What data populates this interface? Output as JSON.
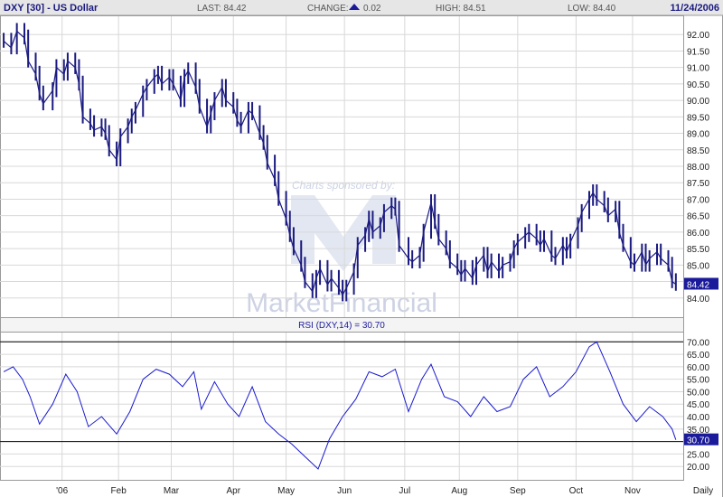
{
  "header": {
    "symbol": "DXY [30] - US Dollar",
    "last": "LAST: 84.42",
    "change_label": "CHANGE:",
    "change_value": "0.02",
    "high": "HIGH: 84.51",
    "low": "LOW: 84.40",
    "date": "11/24/2006"
  },
  "watermark": {
    "sponsor": "Charts sponsored by:",
    "brand": "MarketFinancial"
  },
  "colors": {
    "price": "#1a1a80",
    "rsi": "#1a1ad0",
    "grid": "#d8d8d8",
    "frame": "#9a9a9a",
    "header_bg": "#e6e6e6",
    "label_bg": "#1a1a9a",
    "watermark": "#c5cbe0"
  },
  "chart_data": [
    {
      "type": "ohlc",
      "title": "DXY [30] - US Dollar",
      "ylim": [
        83.5,
        92.5
      ],
      "y_ticks": [
        "84.00",
        "84.50",
        "85.00",
        "85.50",
        "86.00",
        "86.50",
        "87.00",
        "87.50",
        "88.00",
        "88.50",
        "89.00",
        "89.50",
        "90.00",
        "90.50",
        "91.00",
        "91.50",
        "92.00"
      ],
      "last_value": "84.42",
      "series": [
        {
          "name": "DXY",
          "points": [
            {
              "date": "2005-12-02",
              "close": 91.8
            },
            {
              "date": "2005-12-06",
              "close": 91.6
            },
            {
              "date": "2005-12-09",
              "close": 92.1
            },
            {
              "date": "2005-12-13",
              "close": 91.9
            },
            {
              "date": "2005-12-15",
              "close": 91.2
            },
            {
              "date": "2005-12-19",
              "close": 90.8
            },
            {
              "date": "2005-12-21",
              "close": 90.2
            },
            {
              "date": "2005-12-23",
              "close": 89.9
            },
            {
              "date": "2005-12-28",
              "close": 90.3
            },
            {
              "date": "2005-12-30",
              "close": 91.0
            },
            {
              "date": "2006-01-03",
              "close": 90.8
            },
            {
              "date": "2006-01-05",
              "close": 91.2
            },
            {
              "date": "2006-01-09",
              "close": 91.0
            },
            {
              "date": "2006-01-11",
              "close": 90.5
            },
            {
              "date": "2006-01-13",
              "close": 89.5
            },
            {
              "date": "2006-01-17",
              "close": 89.3
            },
            {
              "date": "2006-01-19",
              "close": 89.1
            },
            {
              "date": "2006-01-23",
              "close": 89.2
            },
            {
              "date": "2006-01-25",
              "close": 89.0
            },
            {
              "date": "2006-01-27",
              "close": 88.5
            },
            {
              "date": "2006-01-31",
              "close": 88.2
            },
            {
              "date": "2006-02-02",
              "close": 88.9
            },
            {
              "date": "2006-02-06",
              "close": 89.2
            },
            {
              "date": "2006-02-08",
              "close": 89.5
            },
            {
              "date": "2006-02-10",
              "close": 89.7
            },
            {
              "date": "2006-02-14",
              "close": 90.2
            },
            {
              "date": "2006-02-16",
              "close": 90.4
            },
            {
              "date": "2006-02-20",
              "close": 90.7
            },
            {
              "date": "2006-02-22",
              "close": 90.8
            },
            {
              "date": "2006-02-24",
              "close": 90.5
            },
            {
              "date": "2006-02-28",
              "close": 90.7
            },
            {
              "date": "2006-03-02",
              "close": 90.5
            },
            {
              "date": "2006-03-06",
              "close": 90.0
            },
            {
              "date": "2006-03-08",
              "close": 90.7
            },
            {
              "date": "2006-03-10",
              "close": 90.9
            },
            {
              "date": "2006-03-14",
              "close": 90.4
            },
            {
              "date": "2006-03-16",
              "close": 89.8
            },
            {
              "date": "2006-03-20",
              "close": 89.2
            },
            {
              "date": "2006-03-22",
              "close": 89.6
            },
            {
              "date": "2006-03-24",
              "close": 90.0
            },
            {
              "date": "2006-03-28",
              "close": 90.4
            },
            {
              "date": "2006-03-30",
              "close": 90.0
            },
            {
              "date": "2006-04-03",
              "close": 89.8
            },
            {
              "date": "2006-04-05",
              "close": 89.4
            },
            {
              "date": "2006-04-07",
              "close": 89.2
            },
            {
              "date": "2006-04-11",
              "close": 89.7
            },
            {
              "date": "2006-04-13",
              "close": 89.6
            },
            {
              "date": "2006-04-17",
              "close": 89.0
            },
            {
              "date": "2006-04-19",
              "close": 88.7
            },
            {
              "date": "2006-04-21",
              "close": 88.1
            },
            {
              "date": "2006-04-25",
              "close": 87.6
            },
            {
              "date": "2006-04-27",
              "close": 87.0
            },
            {
              "date": "2006-05-01",
              "close": 86.4
            },
            {
              "date": "2006-05-03",
              "close": 85.9
            },
            {
              "date": "2006-05-05",
              "close": 85.5
            },
            {
              "date": "2006-05-09",
              "close": 85.0
            },
            {
              "date": "2006-05-11",
              "close": 84.5
            },
            {
              "date": "2006-05-15",
              "close": 84.2
            },
            {
              "date": "2006-05-17",
              "close": 84.6
            },
            {
              "date": "2006-05-19",
              "close": 84.9
            },
            {
              "date": "2006-05-23",
              "close": 84.4
            },
            {
              "date": "2006-05-25",
              "close": 84.6
            },
            {
              "date": "2006-05-29",
              "close": 84.3
            },
            {
              "date": "2006-05-31",
              "close": 84.1
            },
            {
              "date": "2006-06-02",
              "close": 84.3
            },
            {
              "date": "2006-06-06",
              "close": 84.8
            },
            {
              "date": "2006-06-08",
              "close": 85.6
            },
            {
              "date": "2006-06-12",
              "close": 85.9
            },
            {
              "date": "2006-06-14",
              "close": 86.4
            },
            {
              "date": "2006-06-16",
              "close": 86.0
            },
            {
              "date": "2006-06-20",
              "close": 86.2
            },
            {
              "date": "2006-06-22",
              "close": 86.6
            },
            {
              "date": "2006-06-26",
              "close": 86.8
            },
            {
              "date": "2006-06-28",
              "close": 86.7
            },
            {
              "date": "2006-06-30",
              "close": 85.6
            },
            {
              "date": "2006-07-05",
              "close": 85.2
            },
            {
              "date": "2006-07-07",
              "close": 85.1
            },
            {
              "date": "2006-07-11",
              "close": 85.3
            },
            {
              "date": "2006-07-13",
              "close": 86.0
            },
            {
              "date": "2006-07-17",
              "close": 86.9
            },
            {
              "date": "2006-07-19",
              "close": 86.3
            },
            {
              "date": "2006-07-21",
              "close": 85.8
            },
            {
              "date": "2006-07-25",
              "close": 85.5
            },
            {
              "date": "2006-07-27",
              "close": 85.1
            },
            {
              "date": "2006-07-31",
              "close": 84.9
            },
            {
              "date": "2006-08-02",
              "close": 84.7
            },
            {
              "date": "2006-08-04",
              "close": 84.9
            },
            {
              "date": "2006-08-08",
              "close": 84.6
            },
            {
              "date": "2006-08-10",
              "close": 85.0
            },
            {
              "date": "2006-08-14",
              "close": 85.3
            },
            {
              "date": "2006-08-16",
              "close": 84.8
            },
            {
              "date": "2006-08-18",
              "close": 85.1
            },
            {
              "date": "2006-08-22",
              "close": 84.8
            },
            {
              "date": "2006-08-24",
              "close": 85.0
            },
            {
              "date": "2006-08-28",
              "close": 85.1
            },
            {
              "date": "2006-08-30",
              "close": 85.5
            },
            {
              "date": "2006-09-01",
              "close": 85.7
            },
            {
              "date": "2006-09-05",
              "close": 85.9
            },
            {
              "date": "2006-09-07",
              "close": 86.0
            },
            {
              "date": "2006-09-11",
              "close": 85.8
            },
            {
              "date": "2006-09-13",
              "close": 85.6
            },
            {
              "date": "2006-09-15",
              "close": 85.8
            },
            {
              "date": "2006-09-19",
              "close": 85.3
            },
            {
              "date": "2006-09-21",
              "close": 85.2
            },
            {
              "date": "2006-09-25",
              "close": 85.6
            },
            {
              "date": "2006-09-27",
              "close": 85.4
            },
            {
              "date": "2006-09-29",
              "close": 85.7
            },
            {
              "date": "2006-10-03",
              "close": 86.2
            },
            {
              "date": "2006-10-05",
              "close": 86.6
            },
            {
              "date": "2006-10-09",
              "close": 87.0
            },
            {
              "date": "2006-10-11",
              "close": 87.2
            },
            {
              "date": "2006-10-13",
              "close": 87.0
            },
            {
              "date": "2006-10-17",
              "close": 86.8
            },
            {
              "date": "2006-10-19",
              "close": 86.5
            },
            {
              "date": "2006-10-23",
              "close": 86.7
            },
            {
              "date": "2006-10-25",
              "close": 86.0
            },
            {
              "date": "2006-10-27",
              "close": 85.6
            },
            {
              "date": "2006-10-31",
              "close": 85.1
            },
            {
              "date": "2006-11-02",
              "close": 85.0
            },
            {
              "date": "2006-11-06",
              "close": 85.4
            },
            {
              "date": "2006-11-08",
              "close": 85.0
            },
            {
              "date": "2006-11-10",
              "close": 85.2
            },
            {
              "date": "2006-11-14",
              "close": 85.4
            },
            {
              "date": "2006-11-16",
              "close": 85.2
            },
            {
              "date": "2006-11-20",
              "close": 85.0
            },
            {
              "date": "2006-11-22",
              "close": 84.5
            },
            {
              "date": "2006-11-24",
              "close": 84.42
            }
          ]
        }
      ]
    },
    {
      "type": "line",
      "title": "RSI (DXY,14) = 30.70",
      "ylim": [
        15,
        73
      ],
      "y_ticks": [
        "20.00",
        "25.00",
        "30.00",
        "35.00",
        "40.00",
        "45.00",
        "50.00",
        "55.00",
        "60.00",
        "65.00",
        "70.00"
      ],
      "reference_lines": [
        70,
        30
      ],
      "last_value": "30.70",
      "series": [
        {
          "name": "RSI (DXY,14)",
          "points": [
            {
              "date": "2005-12-02",
              "value": 58
            },
            {
              "date": "2005-12-07",
              "value": 60
            },
            {
              "date": "2005-12-12",
              "value": 55
            },
            {
              "date": "2005-12-16",
              "value": 48
            },
            {
              "date": "2005-12-21",
              "value": 37
            },
            {
              "date": "2005-12-28",
              "value": 45
            },
            {
              "date": "2006-01-04",
              "value": 57
            },
            {
              "date": "2006-01-10",
              "value": 50
            },
            {
              "date": "2006-01-16",
              "value": 36
            },
            {
              "date": "2006-01-23",
              "value": 40
            },
            {
              "date": "2006-01-31",
              "value": 33
            },
            {
              "date": "2006-02-07",
              "value": 42
            },
            {
              "date": "2006-02-14",
              "value": 55
            },
            {
              "date": "2006-02-21",
              "value": 59
            },
            {
              "date": "2006-02-28",
              "value": 57
            },
            {
              "date": "2006-03-07",
              "value": 52
            },
            {
              "date": "2006-03-13",
              "value": 58
            },
            {
              "date": "2006-03-17",
              "value": 43
            },
            {
              "date": "2006-03-24",
              "value": 54
            },
            {
              "date": "2006-03-31",
              "value": 45
            },
            {
              "date": "2006-04-06",
              "value": 40
            },
            {
              "date": "2006-04-13",
              "value": 52
            },
            {
              "date": "2006-04-20",
              "value": 38
            },
            {
              "date": "2006-04-27",
              "value": 33
            },
            {
              "date": "2006-05-04",
              "value": 29
            },
            {
              "date": "2006-05-11",
              "value": 24
            },
            {
              "date": "2006-05-18",
              "value": 19
            },
            {
              "date": "2006-05-24",
              "value": 31
            },
            {
              "date": "2006-05-31",
              "value": 40
            },
            {
              "date": "2006-06-07",
              "value": 47
            },
            {
              "date": "2006-06-14",
              "value": 58
            },
            {
              "date": "2006-06-21",
              "value": 56
            },
            {
              "date": "2006-06-28",
              "value": 59
            },
            {
              "date": "2006-07-05",
              "value": 42
            },
            {
              "date": "2006-07-12",
              "value": 55
            },
            {
              "date": "2006-07-17",
              "value": 61
            },
            {
              "date": "2006-07-24",
              "value": 48
            },
            {
              "date": "2006-07-31",
              "value": 46
            },
            {
              "date": "2006-08-07",
              "value": 40
            },
            {
              "date": "2006-08-14",
              "value": 48
            },
            {
              "date": "2006-08-21",
              "value": 42
            },
            {
              "date": "2006-08-28",
              "value": 44
            },
            {
              "date": "2006-09-04",
              "value": 55
            },
            {
              "date": "2006-09-11",
              "value": 60
            },
            {
              "date": "2006-09-18",
              "value": 48
            },
            {
              "date": "2006-09-25",
              "value": 52
            },
            {
              "date": "2006-10-02",
              "value": 58
            },
            {
              "date": "2006-10-09",
              "value": 68
            },
            {
              "date": "2006-10-13",
              "value": 70
            },
            {
              "date": "2006-10-20",
              "value": 58
            },
            {
              "date": "2006-10-27",
              "value": 45
            },
            {
              "date": "2006-11-03",
              "value": 38
            },
            {
              "date": "2006-11-10",
              "value": 44
            },
            {
              "date": "2006-11-17",
              "value": 40
            },
            {
              "date": "2006-11-22",
              "value": 35
            },
            {
              "date": "2006-11-24",
              "value": 30.7
            }
          ]
        }
      ],
      "x_ticks": [
        {
          "date": "2006-01-02",
          "label": "'06"
        },
        {
          "date": "2006-02-01",
          "label": "Feb"
        },
        {
          "date": "2006-03-01",
          "label": "Mar"
        },
        {
          "date": "2006-04-03",
          "label": "Apr"
        },
        {
          "date": "2006-05-01",
          "label": "May"
        },
        {
          "date": "2006-06-01",
          "label": "Jun"
        },
        {
          "date": "2006-07-03",
          "label": "Jul"
        },
        {
          "date": "2006-08-01",
          "label": "Aug"
        },
        {
          "date": "2006-09-01",
          "label": "Sep"
        },
        {
          "date": "2006-10-02",
          "label": "Oct"
        },
        {
          "date": "2006-11-01",
          "label": "Nov"
        }
      ],
      "x_axis_label": "Daily"
    }
  ]
}
